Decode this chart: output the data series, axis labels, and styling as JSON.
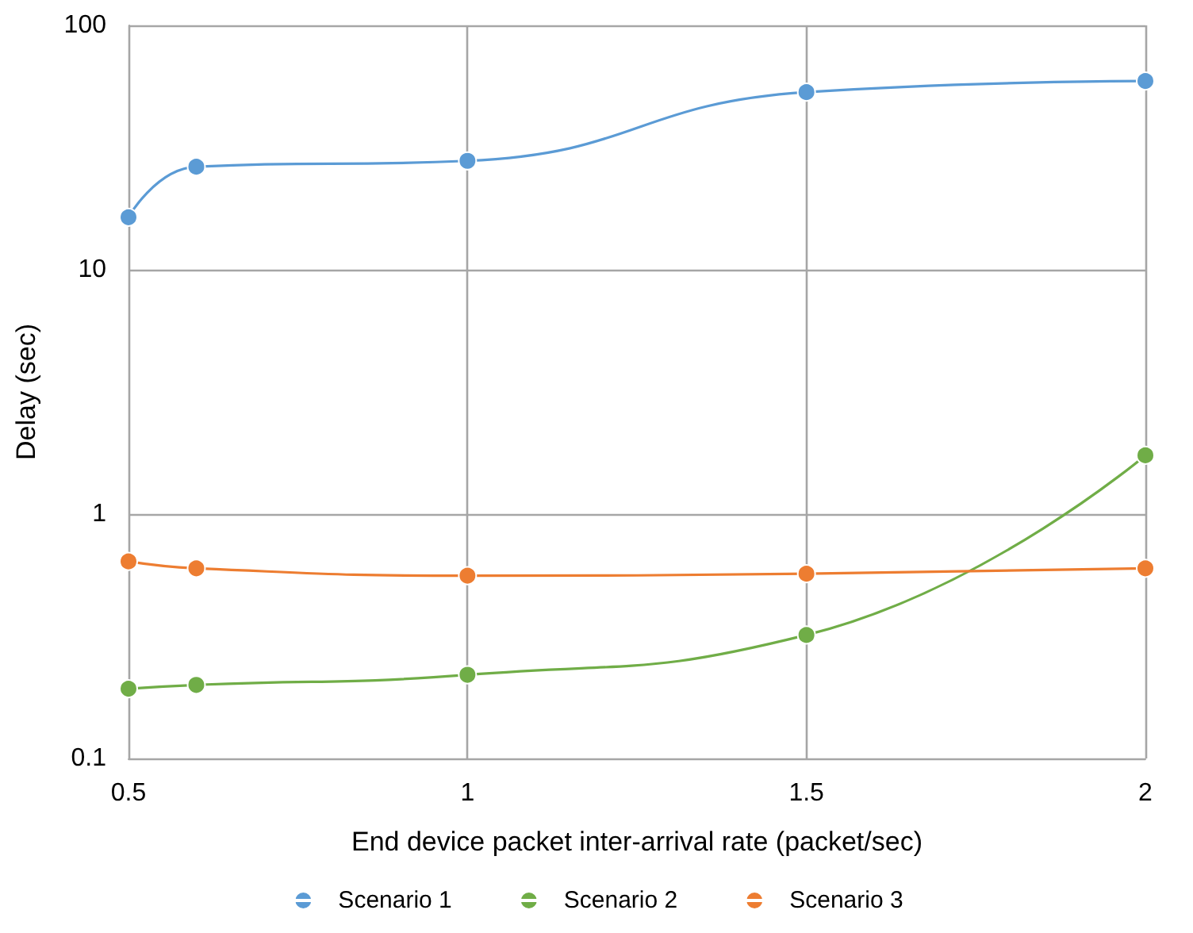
{
  "chart_data": {
    "type": "line",
    "xlabel": "End device packet inter-arrival rate (packet/sec)",
    "ylabel": "Delay (sec)",
    "x": [
      0.5,
      0.6,
      1,
      1.5,
      2
    ],
    "series": [
      {
        "name": "Scenario 1",
        "color": "#5b9bd5",
        "values": [
          16.4,
          26.4,
          27.9,
          53.3,
          59.2
        ]
      },
      {
        "name": "Scenario 2",
        "color": "#70ad47",
        "values": [
          0.193,
          0.2,
          0.22,
          0.32,
          1.74
        ]
      },
      {
        "name": "Scenario 3",
        "color": "#ed7d31",
        "values": [
          0.64,
          0.6,
          0.56,
          0.57,
          0.6
        ]
      }
    ],
    "xlim": [
      0.5,
      2
    ],
    "xticks": [
      0.5,
      1,
      1.5,
      2
    ],
    "ylim": [
      0.1,
      100
    ],
    "yticks": [
      0.1,
      1,
      10,
      100
    ],
    "log": "y",
    "grid": true,
    "legend": "bottom",
    "marker": "circle",
    "line_style": "solid"
  }
}
